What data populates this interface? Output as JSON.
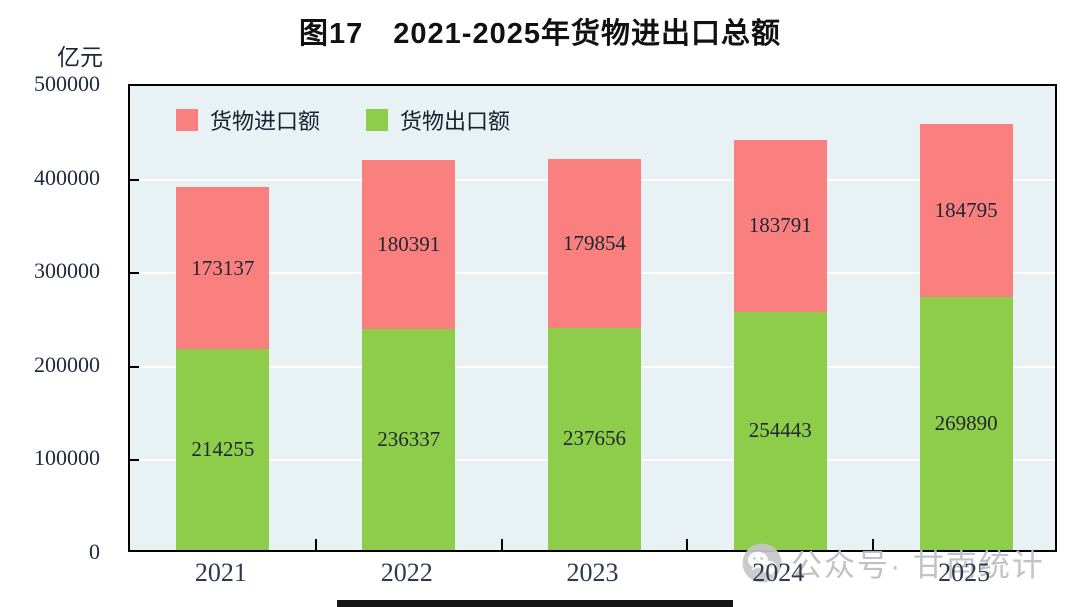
{
  "figure": {
    "title": "图17　2021-2025年货物进出口总额",
    "unit_label": "亿元"
  },
  "legend": {
    "items": [
      {
        "label": "货物进口额",
        "color": "#fa8080"
      },
      {
        "label": "货物出口额",
        "color": "#8dcd49"
      }
    ]
  },
  "colors": {
    "import_red": "#fa8080",
    "export_green": "#8dcd49",
    "plot_background": "#e8f1f4",
    "gridline": "#ffffff",
    "axis_line": "#000000",
    "tick_label_text": "#1d2a3a",
    "value_text": "#1e2733",
    "watermark_gray": "#bdbdbd"
  },
  "watermark": {
    "icon": "wechat-icon",
    "text": "公众号· 甘南统计"
  },
  "chart_data": {
    "type": "bar",
    "stacked": true,
    "title": "图17　2021-2025年货物进出口总额",
    "ylabel": "亿元",
    "xlabel": "",
    "ylim": [
      0,
      500000
    ],
    "yticks": [
      0,
      100000,
      200000,
      300000,
      400000,
      500000
    ],
    "grid": true,
    "legend_position": "top-left-inside",
    "categories": [
      "2021",
      "2022",
      "2023",
      "2024",
      "2025"
    ],
    "series": [
      {
        "name": "货物出口额",
        "role": "export",
        "color": "#8dcd49",
        "values": [
          214255,
          236337,
          237656,
          254443,
          269890
        ]
      },
      {
        "name": "货物进口额",
        "role": "import",
        "color": "#fa8080",
        "values": [
          173137,
          180391,
          179854,
          183791,
          184795
        ]
      }
    ]
  }
}
